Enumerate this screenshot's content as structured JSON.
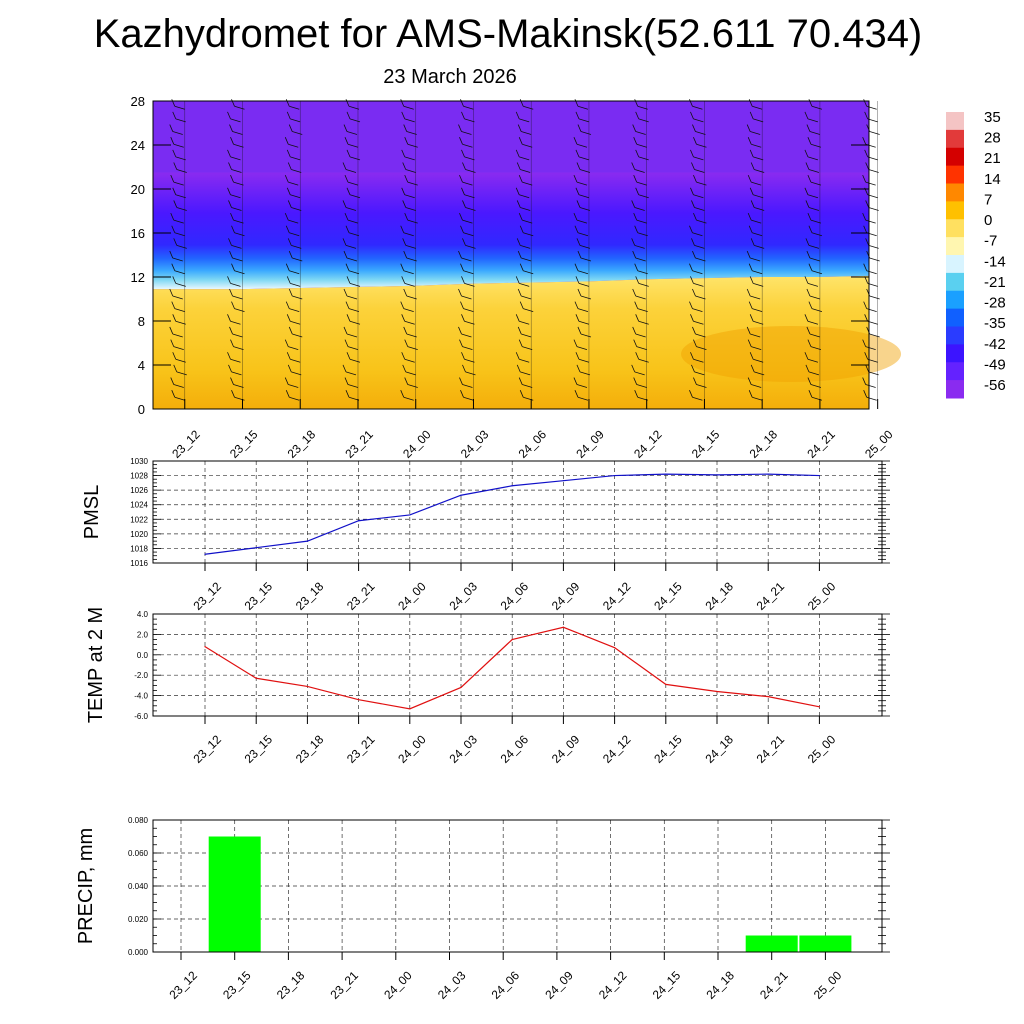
{
  "header": {
    "title": "Kazhydromet for AMS-Makinsk(52.611 70.434)",
    "date": "23 March 2026"
  },
  "colors": {
    "pmsl_line": "#1010c8",
    "temp_line": "#e01010",
    "precip_bar": "#00ff00"
  },
  "chart_data": [
    {
      "type": "heatmap",
      "id": "wind_temp_section",
      "title": "",
      "categories": [
        "23_12",
        "23_15",
        "23_18",
        "23_21",
        "24_00",
        "24_03",
        "24_06",
        "24_09",
        "24_12",
        "24_15",
        "24_18",
        "24_21",
        "25_00"
      ],
      "y_ticks": [
        0,
        4,
        8,
        12,
        16,
        20,
        24,
        28
      ],
      "ylim": [
        0,
        28
      ],
      "colorbar_labels": [
        "35",
        "28",
        "21",
        "14",
        "7",
        "0",
        "-7",
        "-14",
        "-21",
        "-28",
        "-35",
        "-42",
        "-49",
        "-56"
      ],
      "colorbar_colors": [
        "#f4c4c4",
        "#e23a3a",
        "#d40000",
        "#ff3300",
        "#ff8800",
        "#ffc000",
        "#ffe060",
        "#fff6b0",
        "#d8f4ff",
        "#5ad0f0",
        "#1aa0ff",
        "#1060ff",
        "#2a3cff",
        "#3c14ff",
        "#6422ff",
        "#8a2bf0"
      ],
      "freezing_level_km": [
        10.9,
        10.9,
        11.0,
        11.1,
        11.2,
        11.4,
        11.5,
        11.6,
        11.8,
        11.9,
        12.0,
        12.0,
        12.1
      ],
      "cold_core_level_km": 18.0
    },
    {
      "type": "line",
      "id": "pmsl",
      "ylabel": "PMSL",
      "categories": [
        "23_12",
        "23_15",
        "23_18",
        "23_21",
        "24_00",
        "24_03",
        "24_06",
        "24_09",
        "24_12",
        "24_15",
        "24_18",
        "24_21",
        "25_00"
      ],
      "values": [
        1017.2,
        1018.1,
        1019.0,
        1021.8,
        1022.6,
        1025.3,
        1026.6,
        1027.3,
        1028.0,
        1028.2,
        1028.1,
        1028.2,
        1028.0
      ],
      "ylim": [
        1016,
        1030
      ],
      "y_ticks": [
        1016,
        1018,
        1020,
        1022,
        1024,
        1026,
        1028,
        1030
      ],
      "grid": true
    },
    {
      "type": "line",
      "id": "temp2m",
      "ylabel": "TEMP at 2 M",
      "categories": [
        "23_12",
        "23_15",
        "23_18",
        "23_21",
        "24_00",
        "24_03",
        "24_06",
        "24_09",
        "24_12",
        "24_15",
        "24_18",
        "24_21",
        "25_00"
      ],
      "values": [
        0.8,
        -2.3,
        -3.1,
        -4.4,
        -5.3,
        -3.2,
        1.5,
        2.7,
        0.7,
        -2.9,
        -3.6,
        -4.1,
        -5.1
      ],
      "ylim": [
        -6,
        4
      ],
      "y_ticks": [
        -6,
        -4,
        -2,
        0,
        2,
        4
      ],
      "y_tick_labels": [
        "-6.0",
        "-4.0",
        "-2.0",
        "0.0",
        "2.0",
        "4.0"
      ],
      "grid": true
    },
    {
      "type": "bar",
      "id": "precip",
      "ylabel": "PRECIP, mm",
      "categories": [
        "23_12",
        "23_15",
        "23_18",
        "23_21",
        "24_00",
        "24_03",
        "24_06",
        "24_09",
        "24_12",
        "24_15",
        "24_18",
        "24_21",
        "25_00"
      ],
      "values": [
        0,
        0.07,
        0,
        0,
        0,
        0,
        0,
        0,
        0,
        0,
        0,
        0.01,
        0.01
      ],
      "ylim": [
        0,
        0.08
      ],
      "y_ticks": [
        0,
        0.02,
        0.04,
        0.06,
        0.08
      ],
      "y_tick_labels": [
        "0.000",
        "0.020",
        "0.040",
        "0.060",
        "0.080"
      ],
      "grid": true
    }
  ]
}
